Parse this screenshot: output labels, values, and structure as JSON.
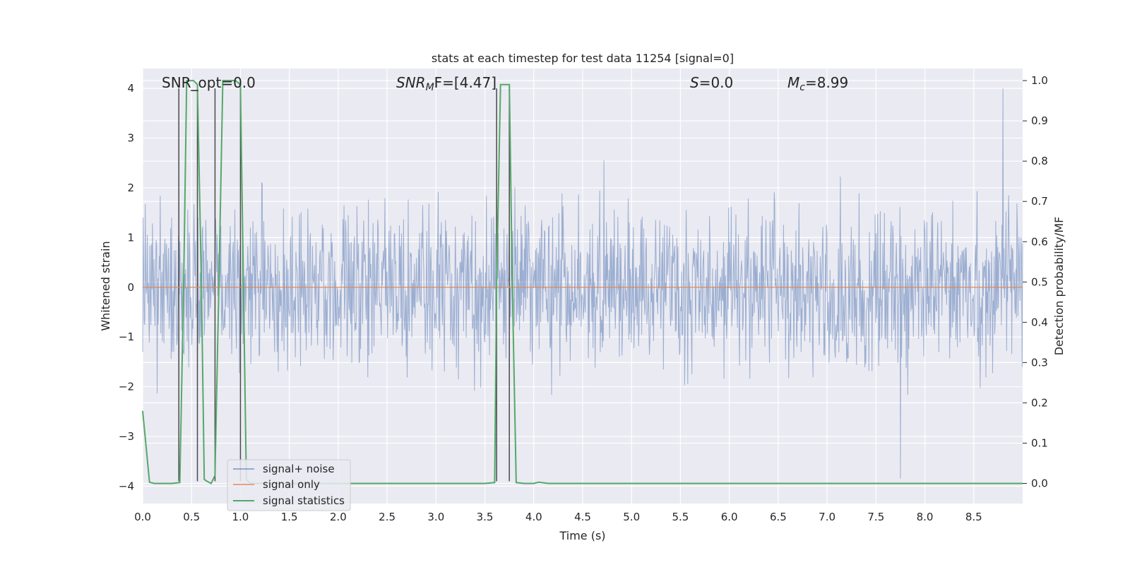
{
  "chart_data": {
    "type": "line",
    "title": "stats at each timestep for test data 11254 [signal=0]",
    "xlabel": "Time (s)",
    "ylabel": "Whitened strain",
    "y2label": "Detection probability/MF",
    "xlim": [
      0.0,
      9.0
    ],
    "ylim": [
      -4.35,
      4.4
    ],
    "y2lim": [
      -0.05,
      1.03
    ],
    "x_ticks": [
      "0.0",
      "0.5",
      "1.0",
      "1.5",
      "2.0",
      "2.5",
      "3.0",
      "3.5",
      "4.0",
      "4.5",
      "5.0",
      "5.5",
      "6.0",
      "6.5",
      "7.0",
      "7.5",
      "8.0",
      "8.5"
    ],
    "y_ticks": [
      "4",
      "3",
      "2",
      "1",
      "0",
      "−1",
      "−2",
      "−3",
      "−4"
    ],
    "y2_ticks": [
      "1.0",
      "0.9",
      "0.8",
      "0.7",
      "0.6",
      "0.5",
      "0.4",
      "0.3",
      "0.2",
      "0.1",
      "0.0"
    ],
    "grid": true,
    "legend_position": "lower-left",
    "annotations": {
      "snr_opt": "SNR_opt=0.0",
      "snr_mf_main": "SNR",
      "snr_mf_sub": "M",
      "snr_mf_tail": "F=[4.47]",
      "s_main": "S",
      "s_tail": "=0.0",
      "mc_main": "M",
      "mc_sub": "c",
      "mc_tail": "=8.99"
    },
    "series": [
      {
        "name": "signal+ noise",
        "color": "#4c72b0",
        "description_values": {
          "envelope_upper_typical": 1.8,
          "envelope_lower_typical": -1.8,
          "peak_max": 4.0,
          "peak_max_x": 8.8,
          "peak_min": -3.85,
          "peak_min_x": 7.75
        }
      },
      {
        "name": "signal only",
        "color": "#dd8452",
        "x": [
          0.0,
          9.0
        ],
        "y": [
          0.0,
          0.0
        ]
      },
      {
        "name": "signal statistics",
        "color": "#55a868",
        "axis": "right",
        "x": [
          0.0,
          0.07,
          0.12,
          0.2,
          0.3,
          0.38,
          0.42,
          0.45,
          0.48,
          0.52,
          0.56,
          0.6,
          0.63,
          0.66,
          0.7,
          0.74,
          0.78,
          0.82,
          0.86,
          0.9,
          0.95,
          1.0,
          1.03,
          1.06,
          1.1,
          1.5,
          2.0,
          2.5,
          3.0,
          3.5,
          3.6,
          3.62,
          3.66,
          3.7,
          3.75,
          3.78,
          3.82,
          3.9,
          4.0,
          4.05,
          4.15,
          4.5,
          5.0,
          6.0,
          7.0,
          8.0,
          9.0
        ],
        "y": [
          0.18,
          0.003,
          0.0,
          0.0,
          0.0,
          0.002,
          0.5,
          1.0,
          1.0,
          1.0,
          0.99,
          0.5,
          0.01,
          0.005,
          0.0,
          0.02,
          0.5,
          1.0,
          1.0,
          1.0,
          1.0,
          0.99,
          0.5,
          0.01,
          0.0,
          0.0,
          0.0,
          0.0,
          0.0,
          0.0,
          0.002,
          0.5,
          0.99,
          0.99,
          0.99,
          0.5,
          0.002,
          0.0,
          0.0,
          0.003,
          0.0,
          0.0,
          0.0,
          0.0,
          0.0,
          0.0,
          0.0
        ]
      }
    ],
    "vertical_markers": {
      "color": "#4a4a4a",
      "x": [
        0.37,
        0.56,
        0.74,
        1.0,
        3.62,
        3.75
      ],
      "top_y": [
        4.0,
        4.0,
        4.0,
        4.0,
        4.0,
        4.0
      ],
      "bottom_y": [
        -3.9,
        -3.9,
        -3.9,
        -3.9,
        -3.9,
        -3.9
      ]
    }
  }
}
